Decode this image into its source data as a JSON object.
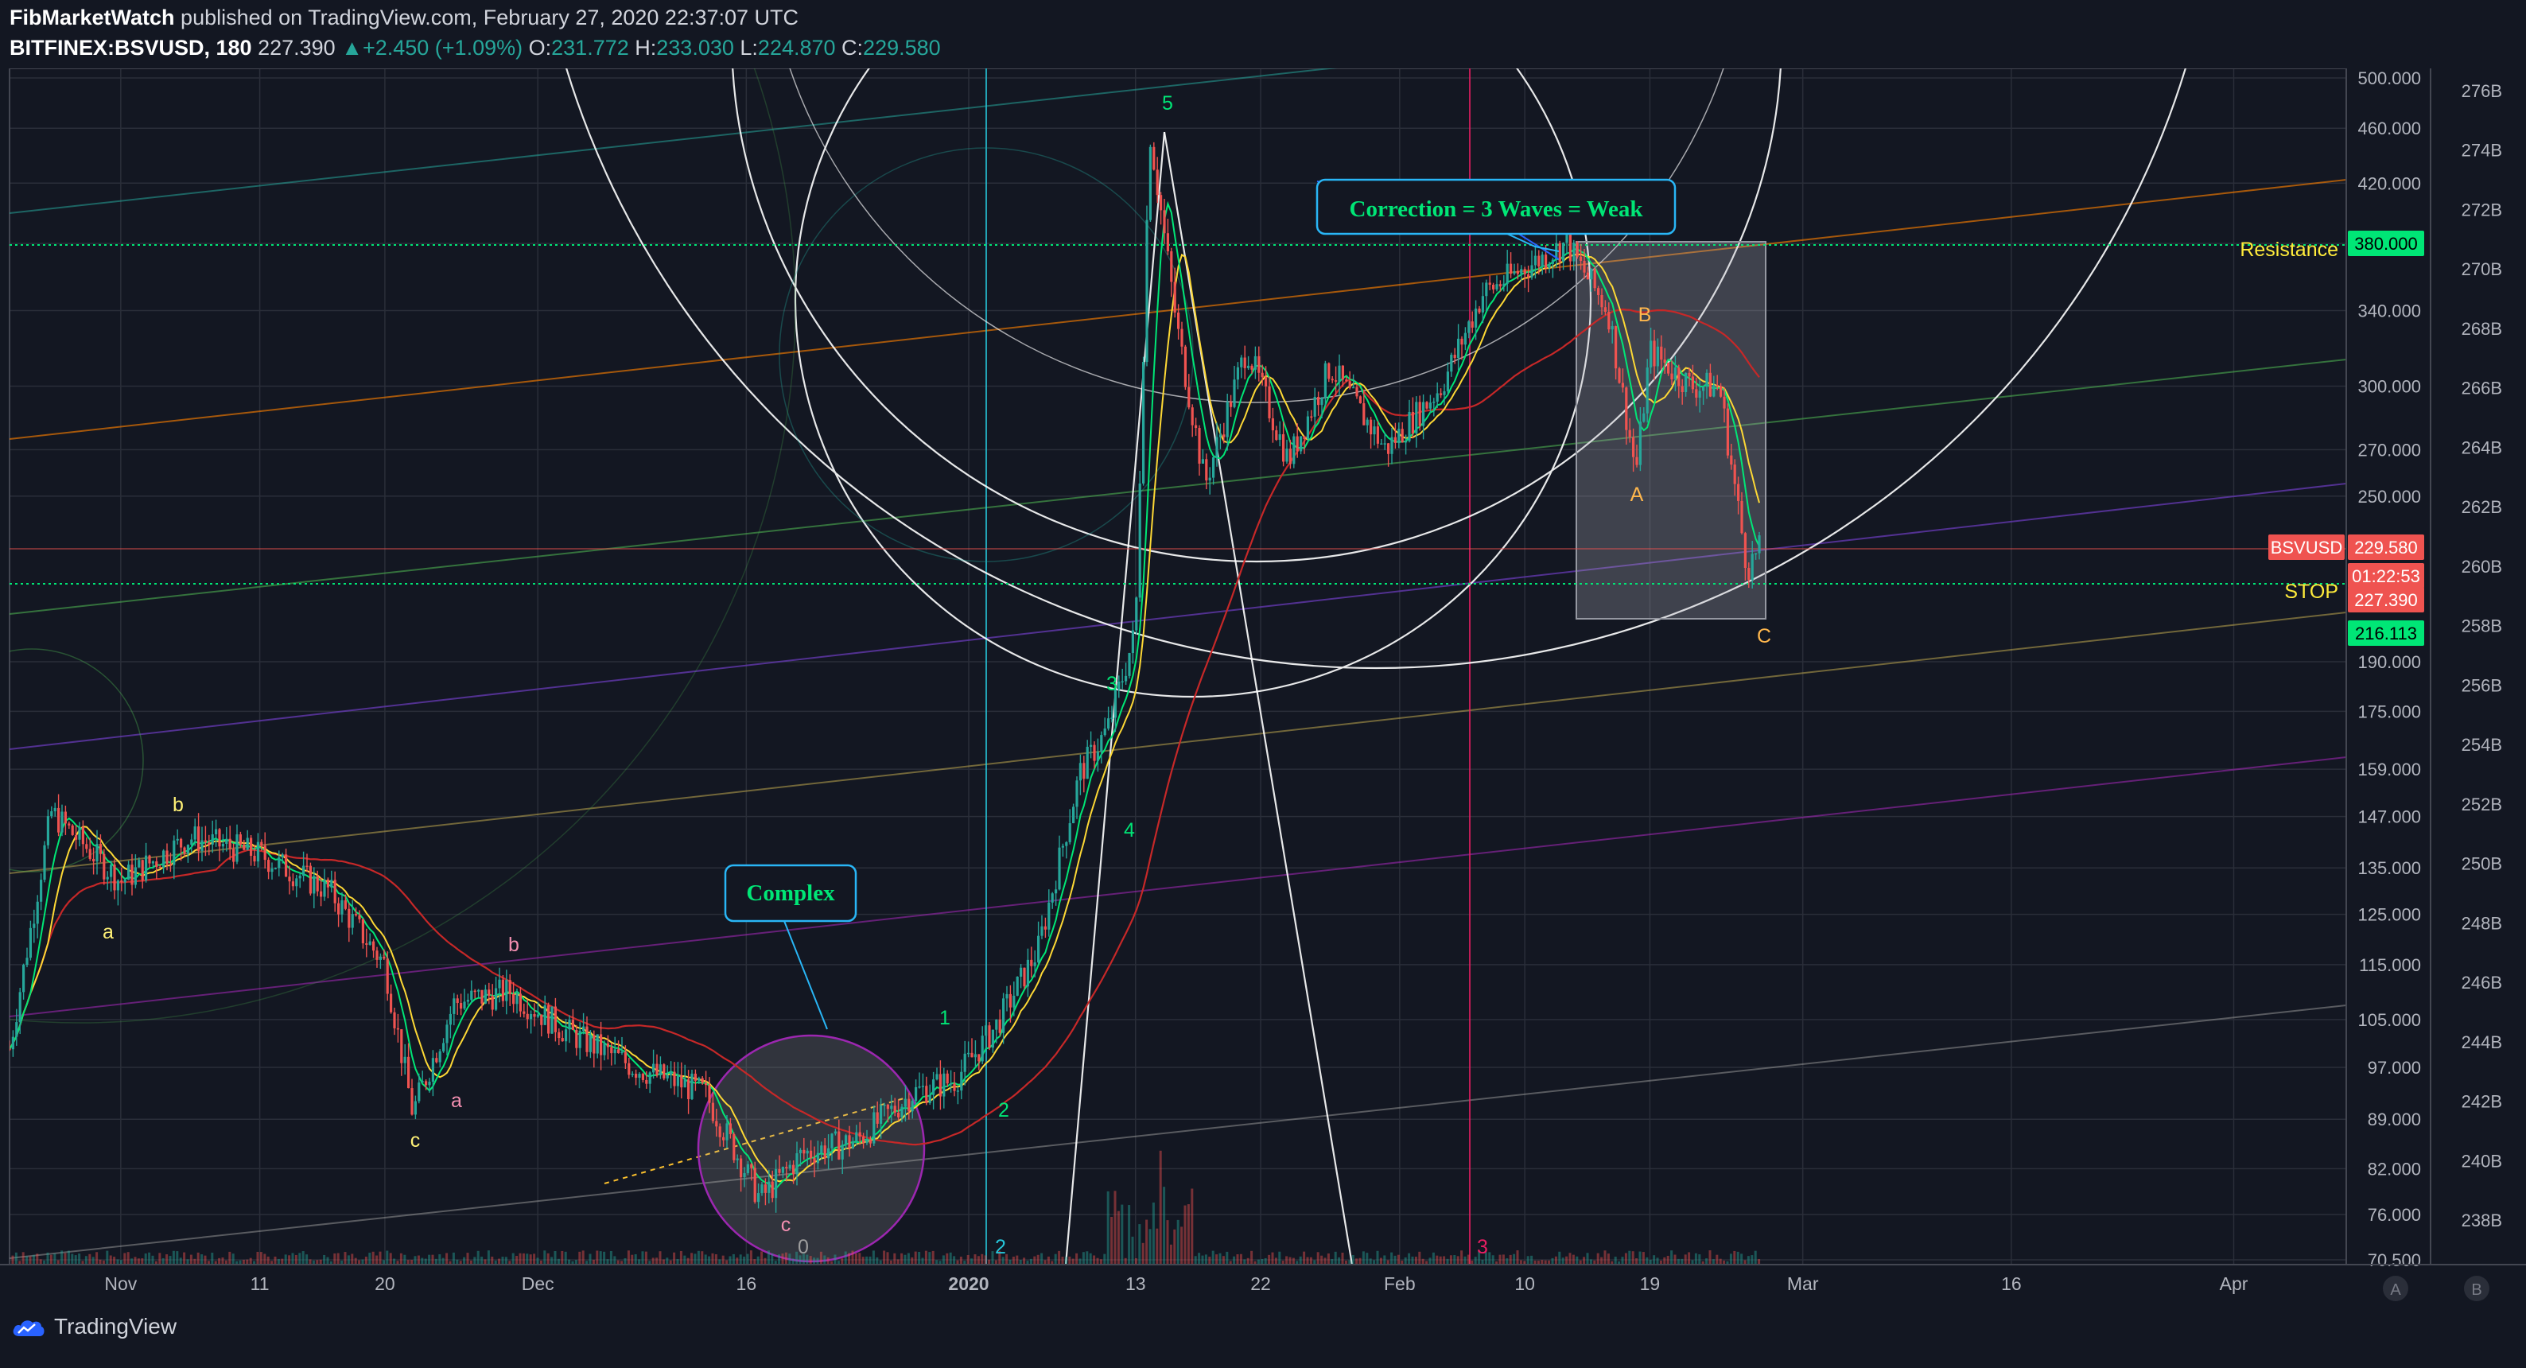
{
  "header": {
    "publisher": "FibMarketWatch",
    "published_text": "published on TradingView.com, February 27, 2020 22:37:07 UTC",
    "symbol": "BITFINEX:BSVUSD, 180",
    "last": "227.390",
    "change": "+2.450 (+1.09%)",
    "o_label": "O:",
    "o": "231.772",
    "h_label": "H:",
    "h": "233.030",
    "l_label": "L:",
    "l": "224.870",
    "c_label": "C:",
    "c": "229.580"
  },
  "footer": {
    "brand": "TradingView"
  },
  "scale_buttons": [
    "A",
    "B"
  ],
  "chart_data": {
    "type": "candlestick",
    "symbol": "BSVUSD",
    "log_scale": true,
    "grid": true,
    "price_axis": [
      "500.000",
      "460.000",
      "420.000",
      "380.000",
      "340.000",
      "300.000",
      "270.000",
      "250.000",
      "190.000",
      "175.000",
      "159.000",
      "147.000",
      "135.000",
      "125.000",
      "115.000",
      "105.000",
      "97.000",
      "89.000",
      "82.000",
      "76.000",
      "70.500"
    ],
    "price_axis_values": [
      500,
      460,
      420,
      380,
      340,
      300,
      270,
      250,
      190,
      175,
      159,
      147,
      135,
      125,
      115,
      105,
      97,
      89,
      82,
      76,
      70.5
    ],
    "volume_axis": [
      "276B",
      "274B",
      "272B",
      "270B",
      "268B",
      "266B",
      "264B",
      "262B",
      "260B",
      "258B",
      "256B",
      "254B",
      "252B",
      "250B",
      "248B",
      "246B",
      "244B",
      "242B",
      "240B",
      "238B"
    ],
    "time_axis": [
      "Nov",
      "11",
      "20",
      "Dec",
      "16",
      "2020",
      "13",
      "22",
      "Feb",
      "10",
      "19",
      "Mar",
      "16",
      "Apr"
    ],
    "price_tags": [
      {
        "label": "380.000",
        "color": "#00e676",
        "text_color": "#000000"
      },
      {
        "label": "BSVUSD",
        "color": "#ef5350",
        "text_color": "#ffffff"
      },
      {
        "label": "229.580",
        "color": "#ef5350",
        "text_color": "#ffffff"
      },
      {
        "label": "01:22:53",
        "color": "#ef5350",
        "text_color": "#ffffff"
      },
      {
        "label": "227.390",
        "color": "#ef5350",
        "text_color": "#ffffff"
      },
      {
        "label": "216.113",
        "color": "#00e676",
        "text_color": "#000000"
      }
    ],
    "levels": [
      {
        "name": "Resistance",
        "price": 380
      },
      {
        "name": "STOP",
        "price": 216.113
      }
    ],
    "callouts": [
      "Correction = 3 Waves = Weak",
      "Complex"
    ],
    "wave_labels": [
      "a",
      "b",
      "c",
      "a",
      "b",
      "c",
      "1",
      "2",
      "3",
      "4",
      "5",
      "A",
      "B",
      "C",
      "2",
      "3",
      "0"
    ],
    "series": [
      {
        "name": "price_path",
        "points": [
          [
            "Oct 24",
            100
          ],
          [
            "Oct 27",
            148
          ],
          [
            "Nov 1",
            132
          ],
          [
            "Nov 6",
            142
          ],
          [
            "Nov 11",
            138
          ],
          [
            "Nov 16",
            130
          ],
          [
            "Nov 20",
            115
          ],
          [
            "Nov 22",
            90
          ],
          [
            "Nov 25",
            108
          ],
          [
            "Nov 29",
            110
          ],
          [
            "Dec 3",
            103
          ],
          [
            "Dec 8",
            97
          ],
          [
            "Dec 13",
            93
          ],
          [
            "Dec 17",
            78
          ],
          [
            "Dec 20",
            84
          ],
          [
            "Dec 24",
            86
          ],
          [
            "Dec 28",
            93
          ],
          [
            "Dec 31",
            95
          ],
          [
            "Jan 3",
            104
          ],
          [
            "Jan 6",
            118
          ],
          [
            "Jan 9",
            158
          ],
          [
            "Jan 11",
            170
          ],
          [
            "Jan 13",
            200
          ],
          [
            "Jan 14",
            460
          ],
          [
            "Jan 16",
            330
          ],
          [
            "Jan 18",
            255
          ],
          [
            "Jan 21",
            320
          ],
          [
            "Jan 24",
            265
          ],
          [
            "Jan 27",
            310
          ],
          [
            "Jan 31",
            270
          ],
          [
            "Feb 4",
            300
          ],
          [
            "Feb 7",
            350
          ],
          [
            "Feb 10",
            365
          ],
          [
            "Feb 13",
            380
          ],
          [
            "Feb 16",
            340
          ],
          [
            "Feb 18",
            260
          ],
          [
            "Feb 19",
            318
          ],
          [
            "Feb 22",
            300
          ],
          [
            "Feb 24",
            300
          ],
          [
            "Feb 26",
            222
          ],
          [
            "Feb 27",
            229.58
          ]
        ]
      }
    ]
  }
}
